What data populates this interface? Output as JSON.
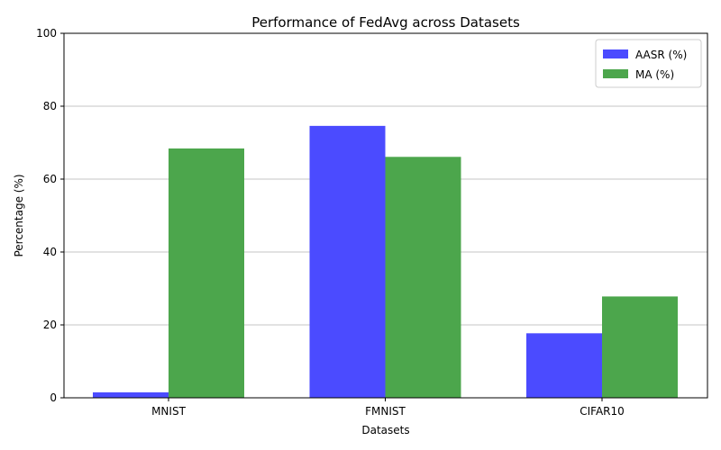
{
  "chart_data": {
    "type": "bar",
    "title": "Performance of FedAvg across Datasets",
    "xlabel": "Datasets",
    "ylabel": "Percentage (%)",
    "categories": [
      "MNIST",
      "FMNIST",
      "CIFAR10"
    ],
    "series": [
      {
        "name": "AASR (%)",
        "values": [
          1.5,
          74.6,
          17.7
        ],
        "color": "#4b4bff"
      },
      {
        "name": "MA (%)",
        "values": [
          68.4,
          66.1,
          27.8
        ],
        "color": "#4ca64c"
      }
    ],
    "ylim": [
      0,
      100
    ],
    "yticks": [
      0,
      20,
      40,
      60,
      80,
      100
    ],
    "grid": "y",
    "legend": "top-right"
  }
}
